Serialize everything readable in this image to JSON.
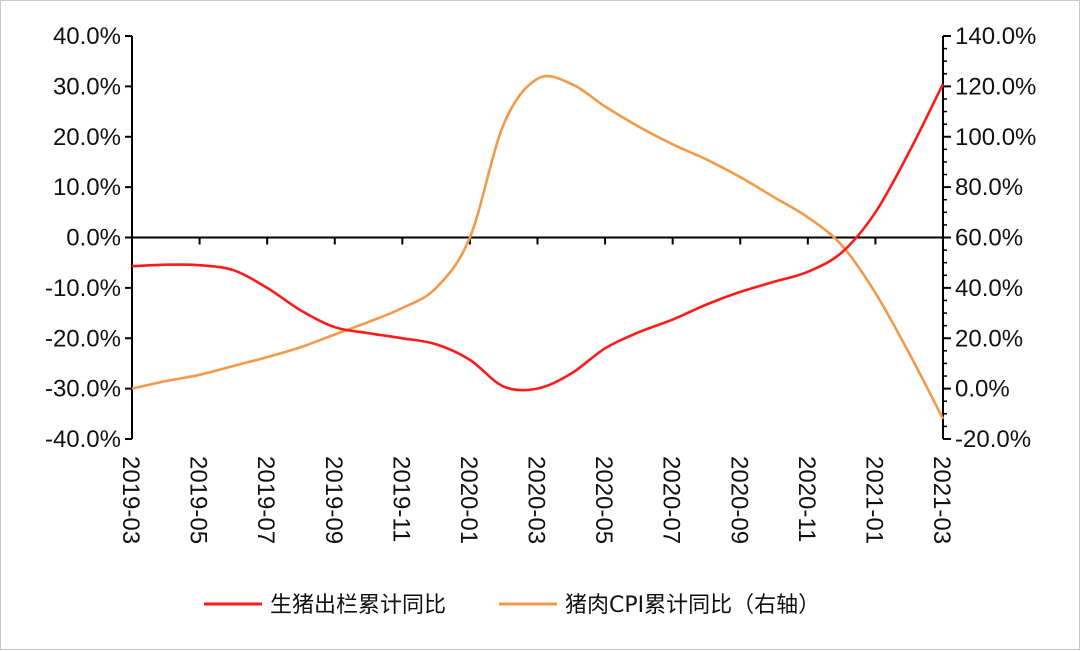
{
  "chart_data": {
    "type": "line",
    "title": "",
    "x": [
      "2019-03",
      "2019-04",
      "2019-05",
      "2019-06",
      "2019-07",
      "2019-08",
      "2019-09",
      "2019-10",
      "2019-11",
      "2019-12",
      "2020-01",
      "2020-02",
      "2020-03",
      "2020-04",
      "2020-05",
      "2020-06",
      "2020-07",
      "2020-08",
      "2020-09",
      "2020-10",
      "2020-11",
      "2020-12",
      "2021-01",
      "2021-02",
      "2021-03"
    ],
    "x_tick_labels": [
      "2019-03",
      "2019-05",
      "2019-07",
      "2019-09",
      "2019-11",
      "2020-01",
      "2020-03",
      "2020-05",
      "2020-07",
      "2020-09",
      "2020-11",
      "2021-01",
      "2021-03"
    ],
    "y_left": {
      "range": [
        -40,
        40
      ],
      "step": 10,
      "tick_labels": [
        "40.0%",
        "30.0%",
        "20.0%",
        "10.0%",
        "0.0%",
        "-10.0%",
        "-20.0%",
        "-30.0%",
        "-40.0%"
      ]
    },
    "y_right": {
      "range": [
        -20,
        140
      ],
      "step": 20,
      "tick_labels": [
        "140.0%",
        "120.0%",
        "100.0%",
        "80.0%",
        "60.0%",
        "40.0%",
        "20.0%",
        "0.0%",
        "-20.0%"
      ]
    },
    "grid": false,
    "legend_position": "bottom",
    "series": [
      {
        "name": "生猪出栏累计同比",
        "axis": "left",
        "color": "#ff1a1a",
        "values": [
          -5.7,
          -5.4,
          -5.5,
          -6.5,
          -10.0,
          -14.5,
          -17.8,
          -19.0,
          -20.0,
          -21.2,
          -24.3,
          -29.6,
          -30.0,
          -27.0,
          -22.0,
          -18.8,
          -16.3,
          -13.3,
          -10.8,
          -8.8,
          -6.8,
          -3.0,
          5.0,
          17.0,
          30.5
        ]
      },
      {
        "name": "猪肉CPI累计同比（右轴）",
        "axis": "right",
        "color": "#f39a4a",
        "values": [
          0.0,
          3.0,
          5.5,
          9.0,
          12.5,
          16.5,
          21.5,
          26.5,
          32.0,
          40.0,
          60.0,
          105.0,
          123.0,
          121.0,
          112.0,
          104.0,
          97.0,
          91.0,
          84.0,
          76.0,
          68.0,
          57.0,
          38.0,
          14.0,
          -12.0
        ]
      }
    ]
  }
}
